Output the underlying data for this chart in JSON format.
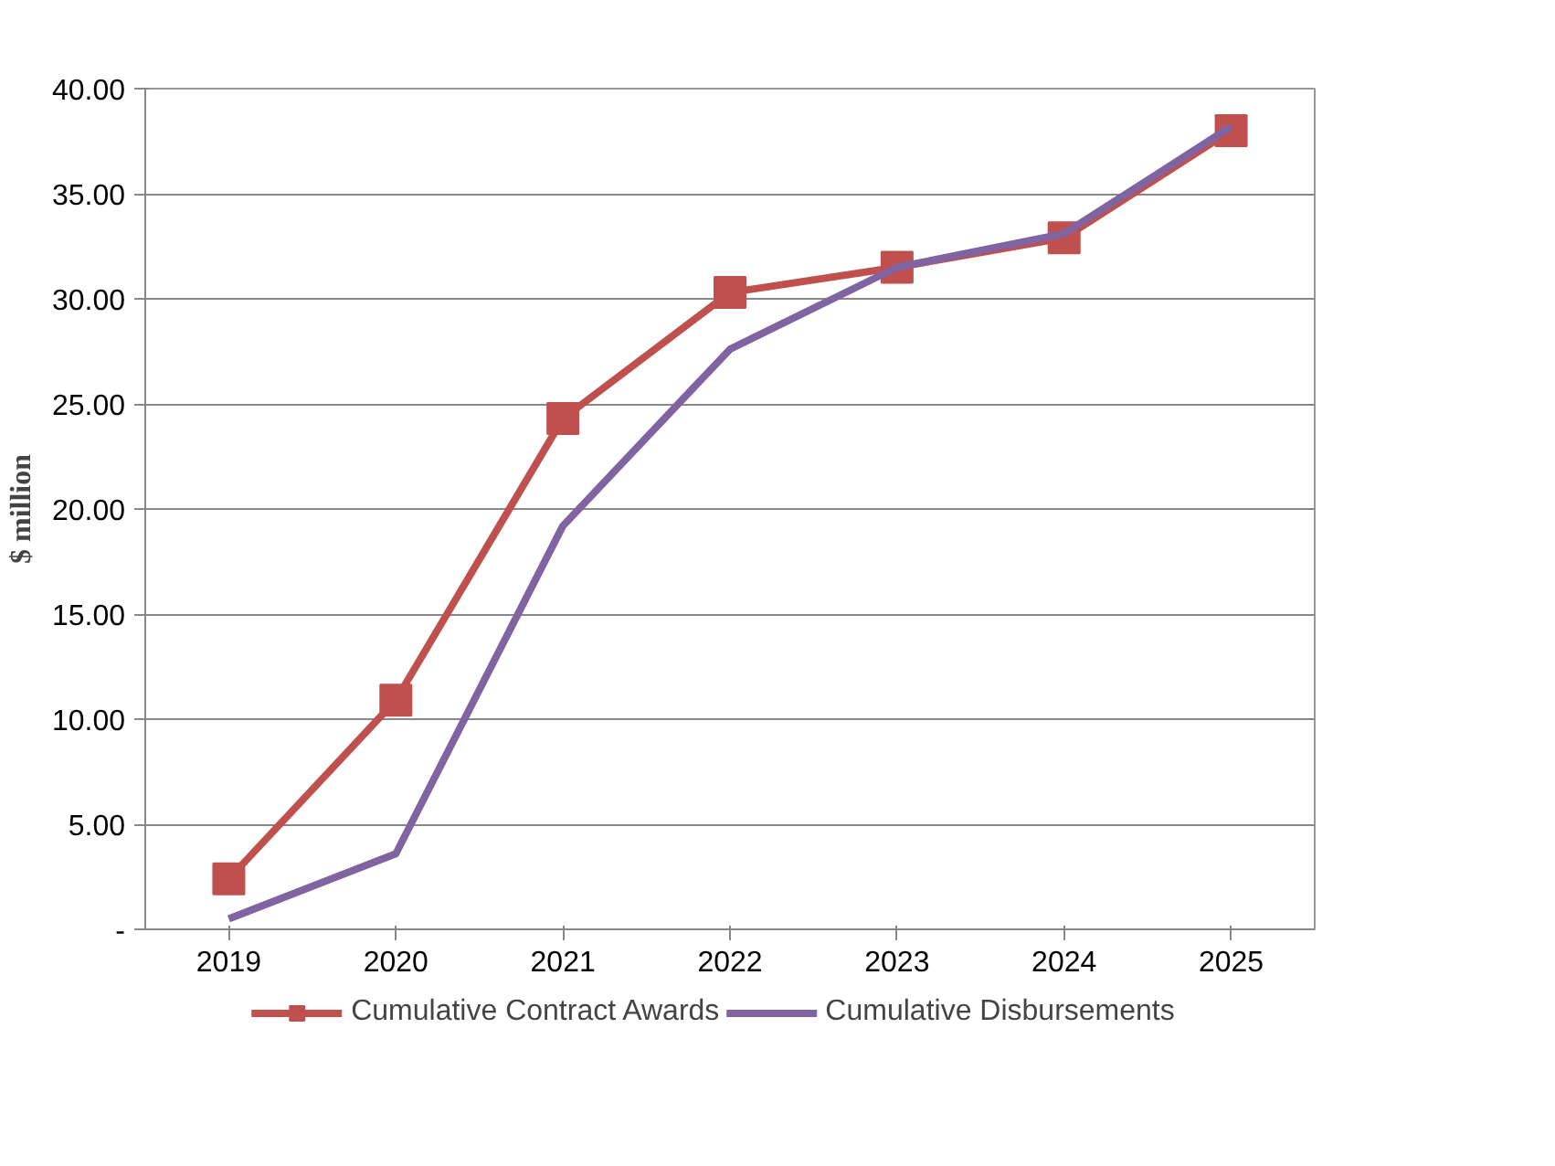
{
  "chart_data": {
    "type": "line",
    "ylabel": "$ million",
    "categories": [
      "2019",
      "2020",
      "2021",
      "2022",
      "2023",
      "2024",
      "2025"
    ],
    "series": [
      {
        "name": "Cumulative Contract Awards",
        "color": "#c0504d",
        "marker": "square",
        "values": [
          2.4,
          10.9,
          24.3,
          30.3,
          31.5,
          32.9,
          38.0
        ]
      },
      {
        "name": "Cumulative Disbursements",
        "color": "#8064a2",
        "marker": "none",
        "values": [
          0.5,
          3.6,
          19.2,
          27.6,
          31.5,
          33.1,
          38.2
        ]
      }
    ],
    "ylim": [
      0,
      40
    ],
    "yticks": [
      {
        "value": 0,
        "label": "-"
      },
      {
        "value": 5,
        "label": "5.00"
      },
      {
        "value": 10,
        "label": "10.00"
      },
      {
        "value": 15,
        "label": "15.00"
      },
      {
        "value": 20,
        "label": "20.00"
      },
      {
        "value": 25,
        "label": "25.00"
      },
      {
        "value": 30,
        "label": "30.00"
      },
      {
        "value": 35,
        "label": "35.00"
      },
      {
        "value": 40,
        "label": "40.00"
      }
    ],
    "grid": "y",
    "legend": "bottom",
    "line_style": "solid"
  }
}
